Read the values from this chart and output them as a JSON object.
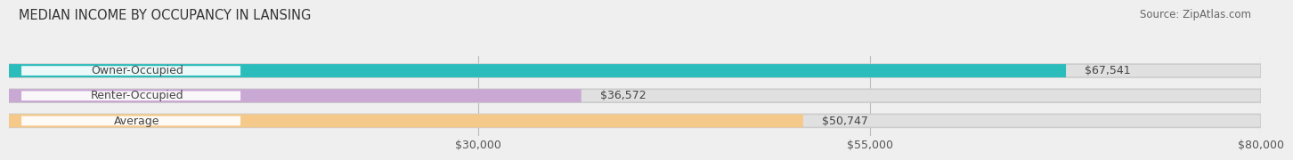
{
  "title": "MEDIAN INCOME BY OCCUPANCY IN LANSING",
  "source": "Source: ZipAtlas.com",
  "categories": [
    "Owner-Occupied",
    "Renter-Occupied",
    "Average"
  ],
  "values": [
    67541,
    36572,
    50747
  ],
  "bar_colors": [
    "#2bbcbc",
    "#c9a8d4",
    "#f5c98a"
  ],
  "bar_labels": [
    "$67,541",
    "$36,572",
    "$50,747"
  ],
  "xlim_data": [
    0,
    80000
  ],
  "xticks": [
    30000,
    55000,
    80000
  ],
  "xtick_labels": [
    "$30,000",
    "$55,000",
    "$80,000"
  ],
  "background_color": "#efefef",
  "bar_bg_color": "#e0e0e0",
  "label_bg_color": "#ffffff",
  "bar_height": 0.52,
  "title_fontsize": 10.5,
  "label_fontsize": 9,
  "tick_fontsize": 9,
  "source_fontsize": 8.5
}
